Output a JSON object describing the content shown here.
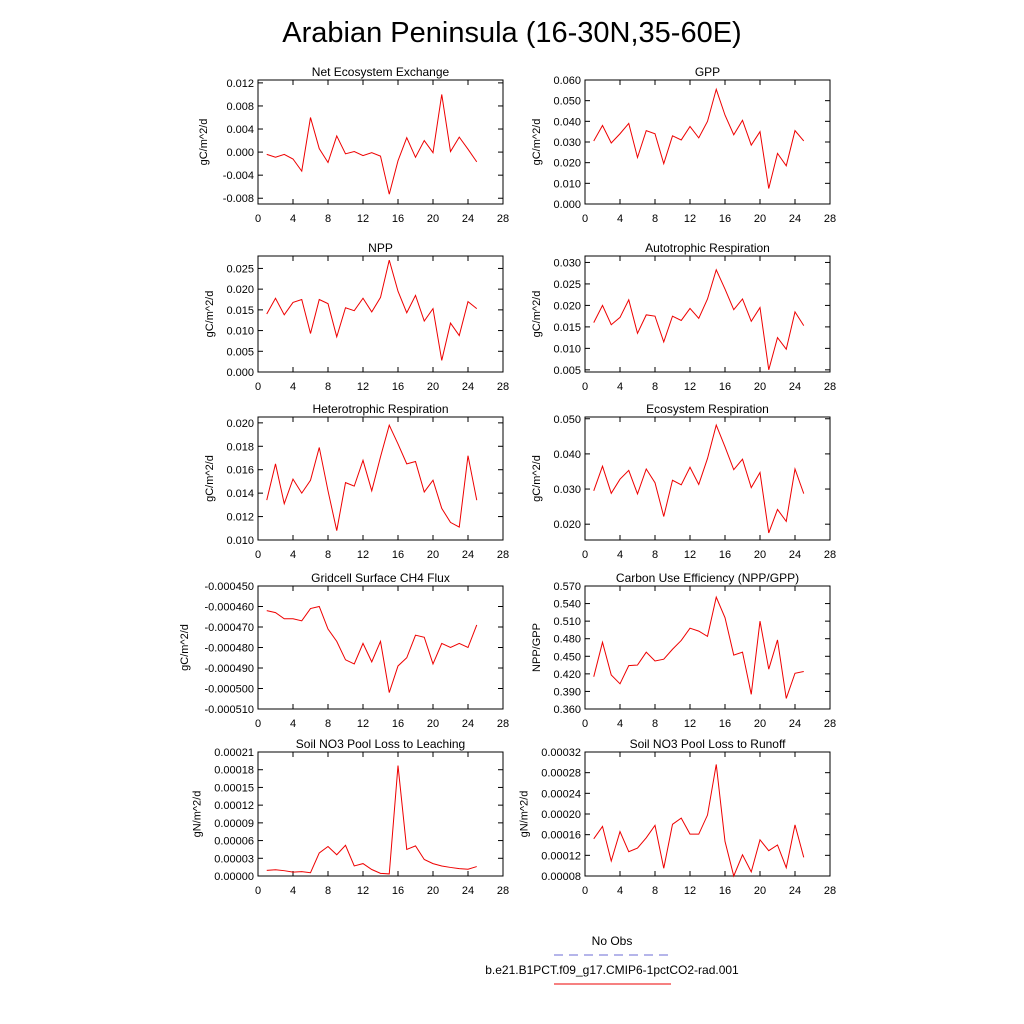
{
  "figure_title": "Arabian Peninsula (16-30N,35-60E)",
  "legend": [
    {
      "label": "No Obs",
      "color": "#6b6bd6",
      "dashed": true
    },
    {
      "label": "b.e21.B1PCT.f09_g17.CMIP6-1pctCO2-rad.001",
      "color": "#ee0000",
      "dashed": false
    }
  ],
  "colors": {
    "series": "#ee0000"
  },
  "chart_data": [
    {
      "type": "line",
      "title": "Net Ecosystem Exchange",
      "ylabel": "gC/m^2/d",
      "xlim": [
        0,
        28
      ],
      "xticks": [
        0,
        4,
        8,
        12,
        16,
        20,
        24,
        28
      ],
      "ylim": [
        -0.009,
        0.0125
      ],
      "yticks": [
        -0.008,
        -0.004,
        0.0,
        0.004,
        0.008,
        0.012
      ],
      "ytick_labels": [
        "-0.008",
        "-0.004",
        "0.000",
        "0.004",
        "0.008",
        "0.012"
      ],
      "x": [
        1,
        2,
        3,
        4,
        5,
        6,
        7,
        8,
        9,
        10,
        11,
        12,
        13,
        14,
        15,
        16,
        17,
        18,
        19,
        20,
        21,
        22,
        23,
        24,
        25
      ],
      "series": [
        {
          "values": [
            -0.0004,
            -0.0009,
            -0.0004,
            -0.0012,
            -0.0033,
            0.006,
            0.0006,
            -0.0018,
            0.0028,
            -0.0003,
            0.0001,
            -0.0006,
            -0.0001,
            -0.0007,
            -0.0073,
            -0.0015,
            0.0025,
            -0.0009,
            0.002,
            -0.0001,
            0.01,
            0.0001,
            0.0026,
            0.0005,
            -0.0017
          ]
        }
      ]
    },
    {
      "type": "line",
      "title": "GPP",
      "ylabel": "gC/m^2/d",
      "xlim": [
        0,
        28
      ],
      "xticks": [
        0,
        4,
        8,
        12,
        16,
        20,
        24,
        28
      ],
      "ylim": [
        0.0,
        0.06
      ],
      "yticks": [
        0.0,
        0.01,
        0.02,
        0.03,
        0.04,
        0.05,
        0.06
      ],
      "ytick_labels": [
        "0.000",
        "0.010",
        "0.020",
        "0.030",
        "0.040",
        "0.050",
        "0.060"
      ],
      "x": [
        1,
        2,
        3,
        4,
        5,
        6,
        7,
        8,
        9,
        10,
        11,
        12,
        13,
        14,
        15,
        16,
        17,
        18,
        19,
        20,
        21,
        22,
        23,
        24,
        25
      ],
      "series": [
        {
          "values": [
            0.0305,
            0.038,
            0.0295,
            0.034,
            0.039,
            0.0225,
            0.0355,
            0.034,
            0.0195,
            0.033,
            0.031,
            0.0375,
            0.032,
            0.04,
            0.0555,
            0.043,
            0.0335,
            0.0405,
            0.0285,
            0.035,
            0.0075,
            0.0245,
            0.0185,
            0.0355,
            0.0305
          ]
        }
      ]
    },
    {
      "type": "line",
      "title": "NPP",
      "ylabel": "gC/m^2/d",
      "xlim": [
        0,
        28
      ],
      "xticks": [
        0,
        4,
        8,
        12,
        16,
        20,
        24,
        28
      ],
      "ylim": [
        0.0,
        0.028
      ],
      "yticks": [
        0.0,
        0.005,
        0.01,
        0.015,
        0.02,
        0.025
      ],
      "ytick_labels": [
        "0.000",
        "0.005",
        "0.010",
        "0.015",
        "0.020",
        "0.025"
      ],
      "x": [
        1,
        2,
        3,
        4,
        5,
        6,
        7,
        8,
        9,
        10,
        11,
        12,
        13,
        14,
        15,
        16,
        17,
        18,
        19,
        20,
        21,
        22,
        23,
        24,
        25
      ],
      "series": [
        {
          "values": [
            0.014,
            0.0178,
            0.0138,
            0.0168,
            0.0175,
            0.0093,
            0.0175,
            0.0165,
            0.0085,
            0.0155,
            0.0148,
            0.0178,
            0.0145,
            0.018,
            0.027,
            0.0195,
            0.0143,
            0.0185,
            0.0123,
            0.0153,
            0.0028,
            0.0118,
            0.0088,
            0.017,
            0.0153
          ]
        }
      ]
    },
    {
      "type": "line",
      "title": "Autotrophic Respiration",
      "ylabel": "gC/m^2/d",
      "xlim": [
        0,
        28
      ],
      "xticks": [
        0,
        4,
        8,
        12,
        16,
        20,
        24,
        28
      ],
      "ylim": [
        0.0045,
        0.0315
      ],
      "yticks": [
        0.005,
        0.01,
        0.015,
        0.02,
        0.025,
        0.03
      ],
      "ytick_labels": [
        "0.005",
        "0.010",
        "0.015",
        "0.020",
        "0.025",
        "0.030"
      ],
      "x": [
        1,
        2,
        3,
        4,
        5,
        6,
        7,
        8,
        9,
        10,
        11,
        12,
        13,
        14,
        15,
        16,
        17,
        18,
        19,
        20,
        21,
        22,
        23,
        24,
        25
      ],
      "series": [
        {
          "values": [
            0.016,
            0.02,
            0.0155,
            0.0172,
            0.0213,
            0.0135,
            0.0178,
            0.0175,
            0.0115,
            0.0175,
            0.0165,
            0.0193,
            0.017,
            0.0215,
            0.0283,
            0.0238,
            0.019,
            0.0215,
            0.0163,
            0.0195,
            0.005,
            0.0125,
            0.0098,
            0.0185,
            0.0153
          ]
        }
      ]
    },
    {
      "type": "line",
      "title": "Heterotrophic Respiration",
      "ylabel": "gC/m^2/d",
      "xlim": [
        0,
        28
      ],
      "xticks": [
        0,
        4,
        8,
        12,
        16,
        20,
        24,
        28
      ],
      "ylim": [
        0.01,
        0.0205
      ],
      "yticks": [
        0.01,
        0.012,
        0.014,
        0.016,
        0.018,
        0.02
      ],
      "ytick_labels": [
        "0.010",
        "0.012",
        "0.014",
        "0.016",
        "0.018",
        "0.020"
      ],
      "x": [
        1,
        2,
        3,
        4,
        5,
        6,
        7,
        8,
        9,
        10,
        11,
        12,
        13,
        14,
        15,
        16,
        17,
        18,
        19,
        20,
        21,
        22,
        23,
        24,
        25
      ],
      "series": [
        {
          "values": [
            0.0134,
            0.0165,
            0.0131,
            0.0152,
            0.014,
            0.0151,
            0.0179,
            0.0142,
            0.0108,
            0.0149,
            0.0146,
            0.0168,
            0.0142,
            0.0171,
            0.0198,
            0.0182,
            0.0165,
            0.0167,
            0.0141,
            0.0151,
            0.0127,
            0.0115,
            0.0111,
            0.0172,
            0.0134
          ]
        }
      ]
    },
    {
      "type": "line",
      "title": "Ecosystem Respiration",
      "ylabel": "gC/m^2/d",
      "xlim": [
        0,
        28
      ],
      "xticks": [
        0,
        4,
        8,
        12,
        16,
        20,
        24,
        28
      ],
      "ylim": [
        0.0155,
        0.0505
      ],
      "yticks": [
        0.02,
        0.03,
        0.04,
        0.05
      ],
      "ytick_labels": [
        "0.020",
        "0.030",
        "0.040",
        "0.050"
      ],
      "x": [
        1,
        2,
        3,
        4,
        5,
        6,
        7,
        8,
        9,
        10,
        11,
        12,
        13,
        14,
        15,
        16,
        17,
        18,
        19,
        20,
        21,
        22,
        23,
        24,
        25
      ],
      "series": [
        {
          "values": [
            0.0295,
            0.0365,
            0.0288,
            0.0328,
            0.0353,
            0.0286,
            0.0357,
            0.0318,
            0.0222,
            0.0325,
            0.0312,
            0.0362,
            0.0313,
            0.0387,
            0.0482,
            0.042,
            0.0355,
            0.0385,
            0.0304,
            0.0347,
            0.0175,
            0.0242,
            0.0208,
            0.0357,
            0.0287
          ]
        }
      ]
    },
    {
      "type": "line",
      "title": "Gridcell Surface CH4 Flux",
      "ylabel": "gC/m^2/d",
      "xlim": [
        0,
        28
      ],
      "xticks": [
        0,
        4,
        8,
        12,
        16,
        20,
        24,
        28
      ],
      "ylim": [
        -0.00051,
        -0.00045
      ],
      "yticks": [
        -0.00051,
        -0.0005,
        -0.00049,
        -0.00048,
        -0.00047,
        -0.00046,
        -0.00045
      ],
      "ytick_labels": [
        "-0.000510",
        "-0.000500",
        "-0.000490",
        "-0.000480",
        "-0.000470",
        "-0.000460",
        "-0.000450"
      ],
      "x": [
        1,
        2,
        3,
        4,
        5,
        6,
        7,
        8,
        9,
        10,
        11,
        12,
        13,
        14,
        15,
        16,
        17,
        18,
        19,
        20,
        21,
        22,
        23,
        24,
        25
      ],
      "series": [
        {
          "values": [
            -0.000462,
            -0.000463,
            -0.000466,
            -0.000466,
            -0.000467,
            -0.000461,
            -0.00046,
            -0.000471,
            -0.000477,
            -0.000486,
            -0.000488,
            -0.000478,
            -0.000487,
            -0.000477,
            -0.000502,
            -0.000489,
            -0.000485,
            -0.000474,
            -0.000475,
            -0.000488,
            -0.000478,
            -0.00048,
            -0.000478,
            -0.00048,
            -0.000469
          ]
        }
      ]
    },
    {
      "type": "line",
      "title": "Carbon Use Efficiency (NPP/GPP)",
      "ylabel": "NPP/GPP",
      "xlim": [
        0,
        28
      ],
      "xticks": [
        0,
        4,
        8,
        12,
        16,
        20,
        24,
        28
      ],
      "ylim": [
        0.36,
        0.57
      ],
      "yticks": [
        0.36,
        0.39,
        0.42,
        0.45,
        0.48,
        0.51,
        0.54,
        0.57
      ],
      "ytick_labels": [
        "0.360",
        "0.390",
        "0.420",
        "0.450",
        "0.480",
        "0.510",
        "0.540",
        "0.570"
      ],
      "x": [
        1,
        2,
        3,
        4,
        5,
        6,
        7,
        8,
        9,
        10,
        11,
        12,
        13,
        14,
        15,
        16,
        17,
        18,
        19,
        20,
        21,
        22,
        23,
        24,
        25
      ],
      "series": [
        {
          "values": [
            0.415,
            0.474,
            0.418,
            0.403,
            0.434,
            0.435,
            0.457,
            0.442,
            0.445,
            0.462,
            0.477,
            0.498,
            0.493,
            0.484,
            0.551,
            0.516,
            0.452,
            0.457,
            0.385,
            0.51,
            0.428,
            0.478,
            0.378,
            0.421,
            0.424
          ]
        }
      ]
    },
    {
      "type": "line",
      "title": "Soil NO3 Pool Loss to Leaching",
      "ylabel": "gN/m^2/d",
      "xlim": [
        0,
        28
      ],
      "xticks": [
        0,
        4,
        8,
        12,
        16,
        20,
        24,
        28
      ],
      "ylim": [
        0.0,
        0.00021
      ],
      "yticks": [
        0.0,
        3e-05,
        6e-05,
        9e-05,
        0.00012,
        0.00015,
        0.00018,
        0.00021
      ],
      "ytick_labels": [
        "0.00000",
        "0.00003",
        "0.00006",
        "0.00009",
        "0.00012",
        "0.00015",
        "0.00018",
        "0.00021"
      ],
      "x": [
        1,
        2,
        3,
        4,
        5,
        6,
        7,
        8,
        9,
        10,
        11,
        12,
        13,
        14,
        15,
        16,
        17,
        18,
        19,
        20,
        21,
        22,
        23,
        24,
        25
      ],
      "series": [
        {
          "values": [
            9.5e-06,
            1.05e-05,
            9e-06,
            6.5e-06,
            7.5e-06,
            5.5e-06,
            3.9e-05,
            5e-05,
            3.6e-05,
            5.2e-05,
            1.7e-05,
            2.1e-05,
            1.1e-05,
            4.5e-06,
            3.5e-06,
            0.000187,
            4.5e-05,
            5.1e-05,
            2.8e-05,
            2.1e-05,
            1.7e-05,
            1.45e-05,
            1.25e-05,
            1.15e-05,
            1.6e-05
          ]
        }
      ]
    },
    {
      "type": "line",
      "title": "Soil NO3 Pool Loss to Runoff",
      "ylabel": "gN/m^2/d",
      "xlim": [
        0,
        28
      ],
      "xticks": [
        0,
        4,
        8,
        12,
        16,
        20,
        24,
        28
      ],
      "ylim": [
        8e-05,
        0.00032
      ],
      "yticks": [
        8e-05,
        0.00012,
        0.00016,
        0.0002,
        0.00024,
        0.00028,
        0.00032
      ],
      "ytick_labels": [
        "0.00008",
        "0.00012",
        "0.00016",
        "0.00020",
        "0.00024",
        "0.00028",
        "0.00032"
      ],
      "x": [
        1,
        2,
        3,
        4,
        5,
        6,
        7,
        8,
        9,
        10,
        11,
        12,
        13,
        14,
        15,
        16,
        17,
        18,
        19,
        20,
        21,
        22,
        23,
        24,
        25
      ],
      "series": [
        {
          "values": [
            0.000152,
            0.000176,
            0.000109,
            0.000166,
            0.000127,
            0.000134,
            0.000154,
            0.000178,
            9.5e-05,
            0.00018,
            0.000192,
            0.000161,
            0.000161,
            0.000198,
            0.000296,
            0.000147,
            8e-05,
            0.000121,
            8.8e-05,
            0.00015,
            0.000129,
            0.00014,
            9.6e-05,
            0.000179,
            0.000116
          ]
        }
      ]
    }
  ]
}
